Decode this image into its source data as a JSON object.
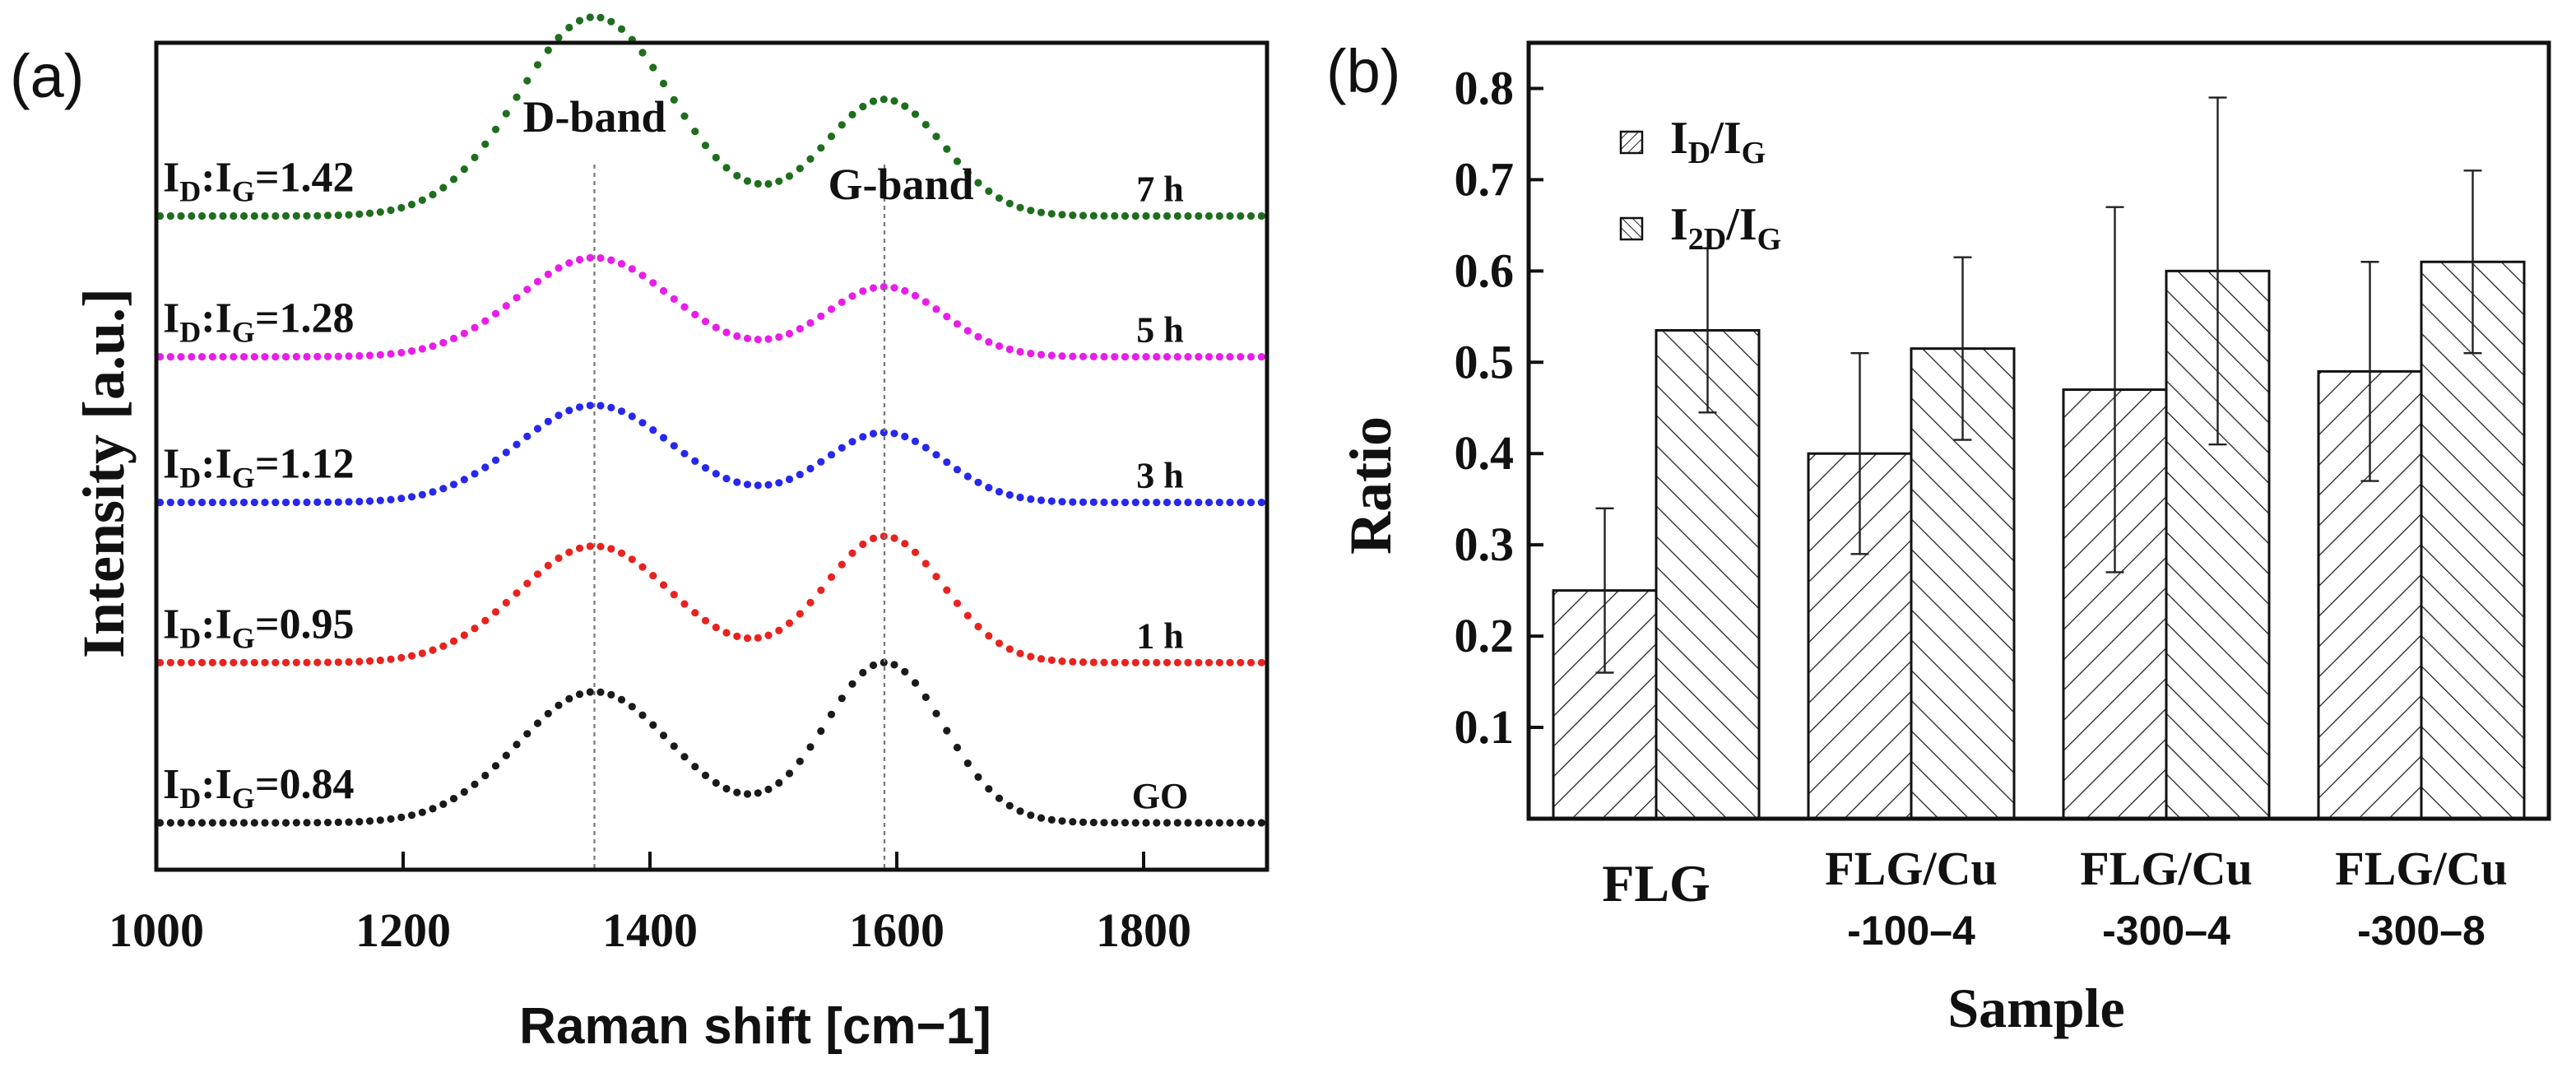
{
  "chart_data": [
    {
      "panel_label": "(a)",
      "type": "line",
      "title": "",
      "xlabel": "Raman shift [cm−1]",
      "ylabel": "Intensity [a.u.]",
      "xlim": [
        1000,
        1900
      ],
      "xticks": [
        "1000",
        "1200",
        "1400",
        "1600",
        "1800"
      ],
      "grid": false,
      "peak_labels": [
        {
          "text": "D-band",
          "position": 1355
        },
        {
          "text": "G-band",
          "position": 1590
        }
      ],
      "series": [
        {
          "name": "GO",
          "ratio_label": "I_D:I_G=0.84",
          "color": "#1a1a1a",
          "offset": 0.0,
          "d_height": 1.35,
          "g_height": 1.65
        },
        {
          "name": "1 h",
          "ratio_label": "I_D:I_G=0.95",
          "color": "#e8231f",
          "offset": 1.65,
          "d_height": 1.2,
          "g_height": 1.3
        },
        {
          "name": "3 h",
          "ratio_label": "I_D:I_G=1.12",
          "color": "#2727ee",
          "offset": 3.3,
          "d_height": 1.0,
          "g_height": 0.72
        },
        {
          "name": "5 h",
          "ratio_label": "I_D:I_G=1.28",
          "color": "#e81ee8",
          "offset": 4.8,
          "d_height": 1.02,
          "g_height": 0.72
        },
        {
          "name": "7 h",
          "ratio_label": "I_D:I_G=1.42",
          "color": "#1e6e1e",
          "offset": 6.25,
          "d_height": 2.05,
          "g_height": 1.2
        }
      ]
    },
    {
      "panel_label": "(b)",
      "type": "bar",
      "title": "",
      "xlabel": "Sample",
      "ylabel": "Ratio",
      "ylim": [
        0,
        0.85
      ],
      "yticks": [
        "0.1",
        "0.2",
        "0.3",
        "0.4",
        "0.5",
        "0.6",
        "0.7",
        "0.8"
      ],
      "categories": [
        [
          "FLG"
        ],
        [
          "FLG/Cu",
          "-100–4"
        ],
        [
          "FLG/Cu",
          "-300–4"
        ],
        [
          "FLG/Cu",
          "-300–8"
        ]
      ],
      "legend_position": "top-left",
      "series": [
        {
          "name": "I_D/I_G",
          "values": [
            0.25,
            0.4,
            0.47,
            0.49
          ],
          "errors": [
            0.09,
            0.11,
            0.2,
            0.12
          ]
        },
        {
          "name": "I_2D/I_G",
          "values": [
            0.535,
            0.515,
            0.6,
            0.61
          ],
          "errors": [
            0.09,
            0.1,
            0.19,
            0.1
          ]
        }
      ]
    }
  ]
}
